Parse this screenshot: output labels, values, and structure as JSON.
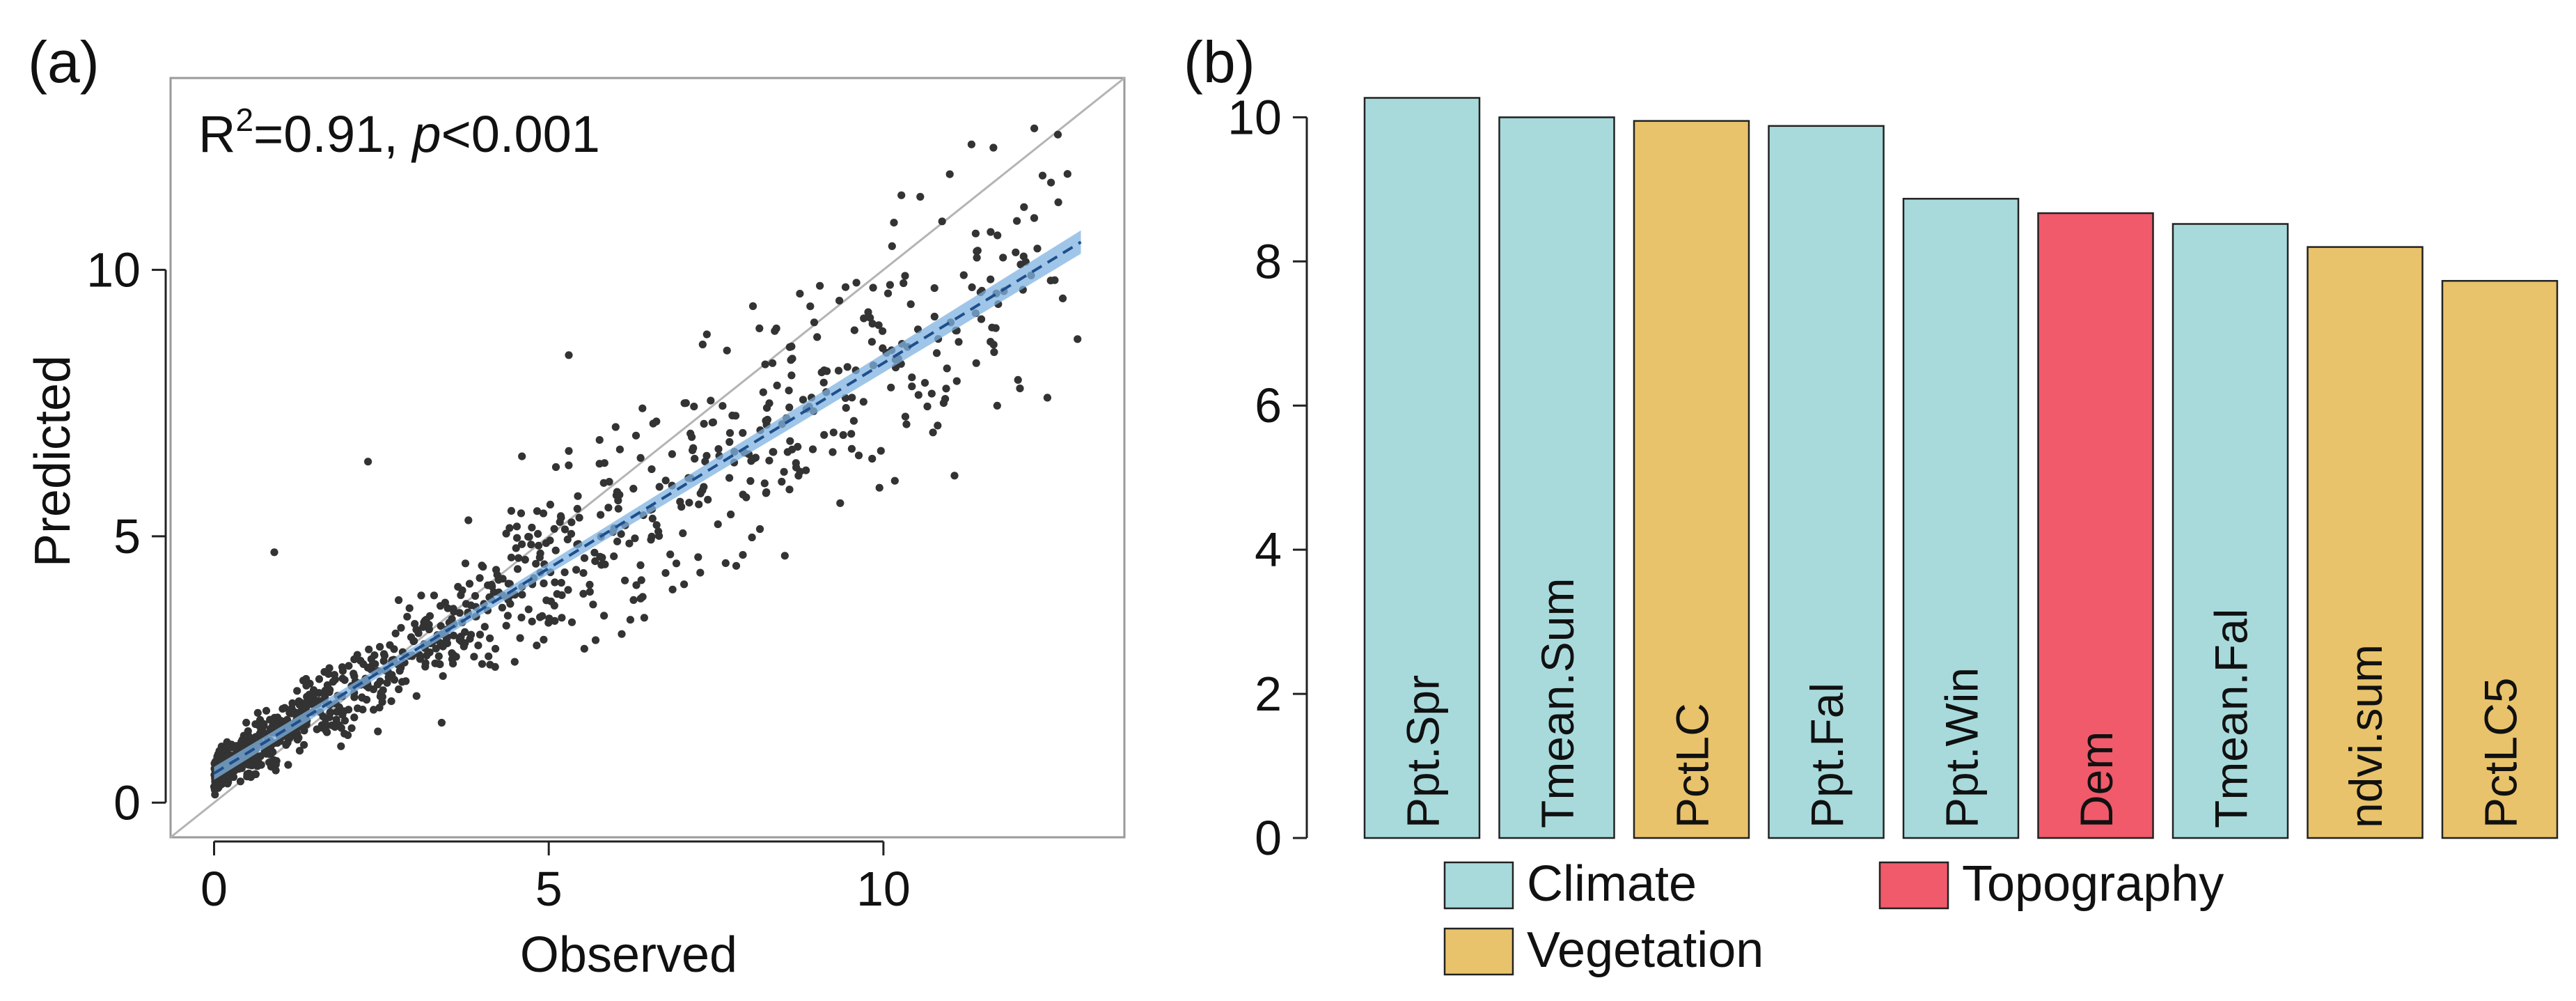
{
  "chart_data": [
    {
      "panel_label": "(a)",
      "type": "scatter",
      "xlabel": "Observed",
      "ylabel": "Predicted",
      "xlim": [
        -0.65,
        13.6
      ],
      "ylim": [
        -0.65,
        13.6
      ],
      "xticks": [
        0,
        5,
        10
      ],
      "yticks": [
        0,
        5,
        10
      ],
      "annotation": {
        "r_label": "R",
        "r_sup": "2",
        "r_value": "=0.91, ",
        "p_label": "p",
        "p_value": "<0.001"
      },
      "reference_line": "1:1",
      "fit": {
        "intercept": 0.55,
        "slope": 0.77,
        "x_range": [
          0,
          12.95
        ],
        "ci_halfwidth": [
          0.08,
          0.22
        ]
      },
      "series": [
        {
          "name": "observations",
          "n_points": 1100,
          "points": [
            [
              0.9,
              4.7
            ],
            [
              2.3,
              6.4
            ],
            [
              5.3,
              8.4
            ],
            [
              7.3,
              8.6
            ],
            [
              12.75,
              11.8
            ],
            [
              12.9,
              8.7
            ],
            [
              12.45,
              7.6
            ],
            [
              11.7,
              7.45
            ],
            [
              12.3,
              10.4
            ],
            [
              10.9,
              7.5
            ],
            [
              11.2,
              9.9
            ],
            [
              9.4,
              6.9
            ],
            [
              6.85,
              4.0
            ],
            [
              7.9,
              4.65
            ],
            [
              5.7,
              3.05
            ],
            [
              4.75,
              3.4
            ],
            [
              3.4,
              1.5
            ],
            [
              5.3,
              6.6
            ],
            [
              6.4,
              7.4
            ],
            [
              8.4,
              8.9
            ],
            [
              10.95,
              8.15
            ],
            [
              11.8,
              9.6
            ],
            [
              12.05,
              10.1
            ],
            [
              12.5,
              9.8
            ],
            [
              11.6,
              8.65
            ],
            [
              9.8,
              9.1
            ],
            [
              9.05,
              9.7
            ],
            [
              10.3,
              9.75
            ],
            [
              8.6,
              8.55
            ],
            [
              4.0,
              4.45
            ],
            [
              4.6,
              6.5
            ],
            [
              3.8,
              5.3
            ],
            [
              6.0,
              7.05
            ],
            [
              7.05,
              7.5
            ]
          ]
        }
      ]
    },
    {
      "panel_label": "(b)",
      "type": "bar",
      "categories": [
        "Ppt.Spr",
        "Tmean.Sum",
        "PctLC",
        "Ppt.Fal",
        "Ppt.Win",
        "Dem",
        "Tmean.Fal",
        "ndvi.sum",
        "PctLC5"
      ],
      "groups": [
        "Climate",
        "Climate",
        "Vegetation",
        "Climate",
        "Climate",
        "Topography",
        "Climate",
        "Vegetation",
        "Vegetation"
      ],
      "values": [
        10.27,
        10.0,
        9.95,
        9.88,
        8.87,
        8.67,
        8.52,
        8.2,
        7.73
      ],
      "ylim": [
        0,
        10.4
      ],
      "yticks": [
        0,
        2,
        4,
        6,
        8,
        10
      ],
      "legend": [
        {
          "label": "Climate",
          "color": "#a8dadc"
        },
        {
          "label": "Topography",
          "color": "#f05a6a"
        },
        {
          "label": "Vegetation",
          "color": "#e8c36b"
        }
      ],
      "group_colors": {
        "Climate": "#a8dadc",
        "Vegetation": "#e8c36b",
        "Topography": "#f05a6a"
      }
    }
  ],
  "colors": {
    "points": "#333333",
    "fit_line": "#1f4e8c",
    "ci_band": "#7fb3e0",
    "identity_line": "#b4b4b4",
    "axis": "#222222"
  }
}
